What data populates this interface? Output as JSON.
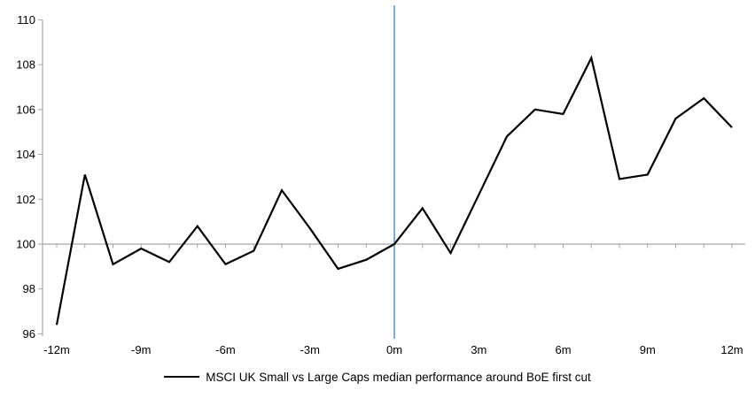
{
  "page": {
    "background": "#ffffff"
  },
  "chart_data": {
    "type": "line",
    "title": "",
    "xlabel": "",
    "ylabel": "",
    "grid": "off",
    "legend_position": "bottom-center",
    "text_color": "#000000",
    "axis_color": "#a6a6a6",
    "x": [
      -12,
      -11,
      -10,
      -9,
      -8,
      -7,
      -6,
      -5,
      -4,
      -3,
      -2,
      -1,
      0,
      1,
      2,
      3,
      4,
      5,
      6,
      7,
      8,
      9,
      10,
      11,
      12
    ],
    "series": [
      {
        "name": "MSCI UK Small vs Large Caps median performance around BoE first cut",
        "color": "#000000",
        "values": [
          96.4,
          103.1,
          99.1,
          99.8,
          99.2,
          100.8,
          99.1,
          99.7,
          102.4,
          100.7,
          98.9,
          99.3,
          100.0,
          101.6,
          99.6,
          102.2,
          104.8,
          106.0,
          105.8,
          108.3,
          102.9,
          103.1,
          105.6,
          106.5,
          105.2
        ]
      }
    ],
    "x_axis": {
      "tick_positions": [
        -12,
        -9,
        -6,
        -3,
        0,
        3,
        6,
        9,
        12
      ],
      "tick_labels": [
        "-12m",
        "-9m",
        "-6m",
        "-3m",
        "0m",
        "3m",
        "6m",
        "9m",
        "12m"
      ],
      "minor_tick_every_months": 1
    },
    "y_axis": {
      "range": [
        96,
        110
      ],
      "ticks": [
        96,
        98,
        100,
        102,
        104,
        106,
        108,
        110
      ]
    },
    "reference_lines": [
      {
        "axis": "y",
        "value": 100,
        "color": "#a8a8a8",
        "meaning": "index base 100"
      },
      {
        "axis": "x",
        "value": 0,
        "color": "#5b9bd5",
        "meaning": "BoE first cut"
      }
    ]
  }
}
